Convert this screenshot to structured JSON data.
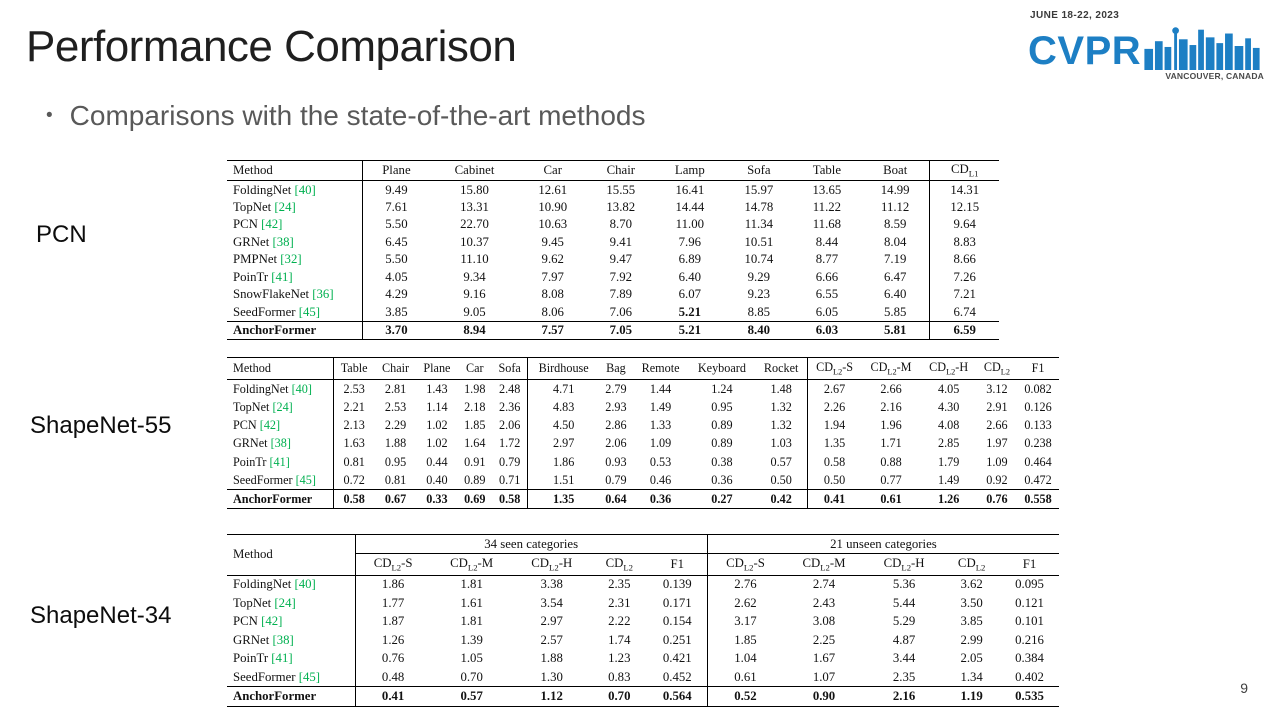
{
  "slide": {
    "title": "Performance Comparison",
    "bullet_text": "Comparisons with the state-of-the-art methods",
    "page_number": "9"
  },
  "logo": {
    "date_line": "JUNE 18-22, 2023",
    "acronym": "CVPR",
    "location_line": "VANCOUVER, CANADA"
  },
  "colors": {
    "accent_blue": "#1d7fc4",
    "citation_green": "#00b050",
    "bullet_gray": "#595959"
  },
  "tables": [
    {
      "name": "pcn",
      "label": "PCN",
      "method_header": "Method",
      "columns": [
        "Plane",
        "Cabinet",
        "Car",
        "Chair",
        "Lamp",
        "Sofa",
        "Table",
        "Boat",
        "CD_{L1}"
      ],
      "col_seps_after": [
        0,
        8
      ],
      "rows": [
        {
          "method": "FoldingNet",
          "cite": "[40]",
          "values": [
            "9.49",
            "15.80",
            "12.61",
            "15.55",
            "16.41",
            "15.97",
            "13.65",
            "14.99",
            "14.31"
          ]
        },
        {
          "method": "TopNet",
          "cite": "[24]",
          "values": [
            "7.61",
            "13.31",
            "10.90",
            "13.82",
            "14.44",
            "14.78",
            "11.22",
            "11.12",
            "12.15"
          ]
        },
        {
          "method": "PCN",
          "cite": "[42]",
          "values": [
            "5.50",
            "22.70",
            "10.63",
            "8.70",
            "11.00",
            "11.34",
            "11.68",
            "8.59",
            "9.64"
          ]
        },
        {
          "method": "GRNet",
          "cite": "[38]",
          "values": [
            "6.45",
            "10.37",
            "9.45",
            "9.41",
            "7.96",
            "10.51",
            "8.44",
            "8.04",
            "8.83"
          ]
        },
        {
          "method": "PMPNet",
          "cite": "[32]",
          "values": [
            "5.50",
            "11.10",
            "9.62",
            "9.47",
            "6.89",
            "10.74",
            "8.77",
            "7.19",
            "8.66"
          ]
        },
        {
          "method": "PoinTr",
          "cite": "[41]",
          "values": [
            "4.05",
            "9.34",
            "7.97",
            "7.92",
            "6.40",
            "9.29",
            "6.66",
            "6.47",
            "7.26"
          ]
        },
        {
          "method": "SnowFlakeNet",
          "cite": "[36]",
          "values": [
            "4.29",
            "9.16",
            "8.08",
            "7.89",
            "6.07",
            "9.23",
            "6.55",
            "6.40",
            "7.21"
          ]
        },
        {
          "method": "SeedFormer",
          "cite": "[45]",
          "values": [
            "3.85",
            "9.05",
            "8.06",
            "7.06",
            "5.21",
            "8.85",
            "6.05",
            "5.85",
            "6.74"
          ],
          "bold_cols": [
            4
          ]
        }
      ],
      "final_row": {
        "method": "AnchorFormer",
        "cite": "",
        "values": [
          "3.70",
          "8.94",
          "7.57",
          "7.05",
          "5.21",
          "8.40",
          "6.03",
          "5.81",
          "6.59"
        ]
      }
    },
    {
      "name": "shapenet55",
      "label": "ShapeNet-55",
      "method_header": "Method",
      "columns": [
        "Table",
        "Chair",
        "Plane",
        "Car",
        "Sofa",
        "Birdhouse",
        "Bag",
        "Remote",
        "Keyboard",
        "Rocket",
        "CD_{L2}-S",
        "CD_{L2}-M",
        "CD_{L2}-H",
        "CD_{L2}",
        "F1"
      ],
      "col_seps_after": [
        0,
        5,
        10
      ],
      "rows": [
        {
          "method": "FoldingNet",
          "cite": "[40]",
          "values": [
            "2.53",
            "2.81",
            "1.43",
            "1.98",
            "2.48",
            "4.71",
            "2.79",
            "1.44",
            "1.24",
            "1.48",
            "2.67",
            "2.66",
            "4.05",
            "3.12",
            "0.082"
          ]
        },
        {
          "method": "TopNet",
          "cite": "[24]",
          "values": [
            "2.21",
            "2.53",
            "1.14",
            "2.18",
            "2.36",
            "4.83",
            "2.93",
            "1.49",
            "0.95",
            "1.32",
            "2.26",
            "2.16",
            "4.30",
            "2.91",
            "0.126"
          ]
        },
        {
          "method": "PCN",
          "cite": "[42]",
          "values": [
            "2.13",
            "2.29",
            "1.02",
            "1.85",
            "2.06",
            "4.50",
            "2.86",
            "1.33",
            "0.89",
            "1.32",
            "1.94",
            "1.96",
            "4.08",
            "2.66",
            "0.133"
          ]
        },
        {
          "method": "GRNet",
          "cite": "[38]",
          "values": [
            "1.63",
            "1.88",
            "1.02",
            "1.64",
            "1.72",
            "2.97",
            "2.06",
            "1.09",
            "0.89",
            "1.03",
            "1.35",
            "1.71",
            "2.85",
            "1.97",
            "0.238"
          ]
        },
        {
          "method": "PoinTr",
          "cite": "[41]",
          "values": [
            "0.81",
            "0.95",
            "0.44",
            "0.91",
            "0.79",
            "1.86",
            "0.93",
            "0.53",
            "0.38",
            "0.57",
            "0.58",
            "0.88",
            "1.79",
            "1.09",
            "0.464"
          ]
        },
        {
          "method": "SeedFormer",
          "cite": "[45]",
          "values": [
            "0.72",
            "0.81",
            "0.40",
            "0.89",
            "0.71",
            "1.51",
            "0.79",
            "0.46",
            "0.36",
            "0.50",
            "0.50",
            "0.77",
            "1.49",
            "0.92",
            "0.472"
          ]
        }
      ],
      "final_row": {
        "method": "AnchorFormer",
        "cite": "",
        "values": [
          "0.58",
          "0.67",
          "0.33",
          "0.69",
          "0.58",
          "1.35",
          "0.64",
          "0.36",
          "0.27",
          "0.42",
          "0.41",
          "0.61",
          "1.26",
          "0.76",
          "0.558"
        ]
      }
    },
    {
      "name": "shapenet34",
      "label": "ShapeNet-34",
      "method_header": "Method",
      "group_headers": [
        {
          "label": "34 seen categories",
          "span": 5
        },
        {
          "label": "21 unseen categories",
          "span": 5
        }
      ],
      "columns": [
        "CD_{L2}-S",
        "CD_{L2}-M",
        "CD_{L2}-H",
        "CD_{L2}",
        "F1",
        "CD_{L2}-S",
        "CD_{L2}-M",
        "CD_{L2}-H",
        "CD_{L2}",
        "F1"
      ],
      "col_seps_after": [
        0,
        5
      ],
      "rows": [
        {
          "method": "FoldingNet",
          "cite": "[40]",
          "values": [
            "1.86",
            "1.81",
            "3.38",
            "2.35",
            "0.139",
            "2.76",
            "2.74",
            "5.36",
            "3.62",
            "0.095"
          ]
        },
        {
          "method": "TopNet",
          "cite": "[24]",
          "values": [
            "1.77",
            "1.61",
            "3.54",
            "2.31",
            "0.171",
            "2.62",
            "2.43",
            "5.44",
            "3.50",
            "0.121"
          ]
        },
        {
          "method": "PCN",
          "cite": "[42]",
          "values": [
            "1.87",
            "1.81",
            "2.97",
            "2.22",
            "0.154",
            "3.17",
            "3.08",
            "5.29",
            "3.85",
            "0.101"
          ]
        },
        {
          "method": "GRNet",
          "cite": "[38]",
          "values": [
            "1.26",
            "1.39",
            "2.57",
            "1.74",
            "0.251",
            "1.85",
            "2.25",
            "4.87",
            "2.99",
            "0.216"
          ]
        },
        {
          "method": "PoinTr",
          "cite": "[41]",
          "values": [
            "0.76",
            "1.05",
            "1.88",
            "1.23",
            "0.421",
            "1.04",
            "1.67",
            "3.44",
            "2.05",
            "0.384"
          ]
        },
        {
          "method": "SeedFormer",
          "cite": "[45]",
          "values": [
            "0.48",
            "0.70",
            "1.30",
            "0.83",
            "0.452",
            "0.61",
            "1.07",
            "2.35",
            "1.34",
            "0.402"
          ]
        }
      ],
      "final_row": {
        "method": "AnchorFormer",
        "cite": "",
        "values": [
          "0.41",
          "0.57",
          "1.12",
          "0.70",
          "0.564",
          "0.52",
          "0.90",
          "2.16",
          "1.19",
          "0.535"
        ]
      }
    }
  ]
}
